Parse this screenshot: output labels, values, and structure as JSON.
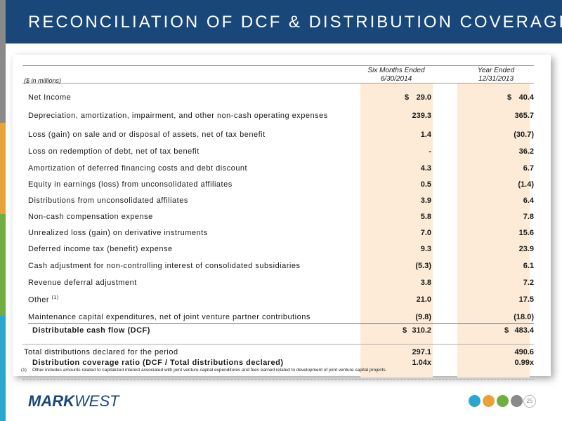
{
  "header": {
    "title": "RECONCILIATION OF DCF & DISTRIBUTION COVERAGE"
  },
  "table": {
    "units_label": "($ in millions)",
    "col1_line1": "Six Months Ended",
    "col1_line2": "6/30/2014",
    "col2_line1": "Year Ended",
    "col2_line2": "12/31/2013",
    "currency_symbol": "$",
    "rows": [
      {
        "label": "Net Income",
        "v1": "29.0",
        "v2": "40.4"
      },
      {
        "label": "Depreciation, amortization, impairment, and other non-cash operating expenses",
        "v1": "239.3",
        "v2": "365.7"
      },
      {
        "label": "Loss (gain) on sale and or disposal of assets, net of tax benefit",
        "v1": "1.4",
        "v2": "(30.7)"
      },
      {
        "label": "Loss on redemption of debt, net of tax benefit",
        "v1": "-",
        "v2": "36.2"
      },
      {
        "label": "Amortization of deferred financing costs and debt discount",
        "v1": "4.3",
        "v2": "6.7"
      },
      {
        "label": "Equity in earnings (loss)  from unconsolidated affiliates",
        "v1": "0.5",
        "v2": "(1.4)"
      },
      {
        "label": "Distributions from unconsolidated affiliates",
        "v1": "3.9",
        "v2": "6.4"
      },
      {
        "label": "Non-cash compensation expense",
        "v1": "5.8",
        "v2": "7.8"
      },
      {
        "label": "Unrealized loss (gain) on derivative instruments",
        "v1": "7.0",
        "v2": "15.6"
      },
      {
        "label": "Deferred income tax (benefit) expense",
        "v1": "9.3",
        "v2": "23.9"
      },
      {
        "label": "Cash adjustment for non-controlling interest of consolidated subsidiaries",
        "v1": "(5.3)",
        "v2": "6.1"
      },
      {
        "label": "Revenue deferral adjustment",
        "v1": "3.8",
        "v2": "7.2"
      },
      {
        "label": "Other",
        "sup": "(1)",
        "v1": "21.0",
        "v2": "17.5"
      },
      {
        "label": "Maintenance capital expenditures, net of joint venture partner contributions",
        "v1": "(9.8)",
        "v2": "(18.0)"
      }
    ],
    "dcf": {
      "label": "Distributable cash flow (DCF)",
      "v1": "310.2",
      "v2": "483.4"
    },
    "total": {
      "label": "Total distributions declared for the period",
      "v1": "297.1",
      "v2": "490.6"
    },
    "ratio": {
      "label": "Distribution coverage ratio (DCF / Total distributions declared)",
      "v1": "1.04x",
      "v2": "0.99x"
    }
  },
  "footnote": {
    "number": "(1)",
    "text": "Other includes amounts related to capitalized interest associated with joint venture capital expenditures and fees earned related to development of joint venture capital projects."
  },
  "footer": {
    "logo_bold": "MARK",
    "logo_light": "WEST",
    "page_number": "25"
  },
  "colors": {
    "header_bg": "#19477a",
    "column_highlight": "#fdebd7",
    "left_bar": [
      "#8a8a8a",
      "#e8a23a",
      "#6fae3f",
      "#2aa6d0"
    ]
  }
}
